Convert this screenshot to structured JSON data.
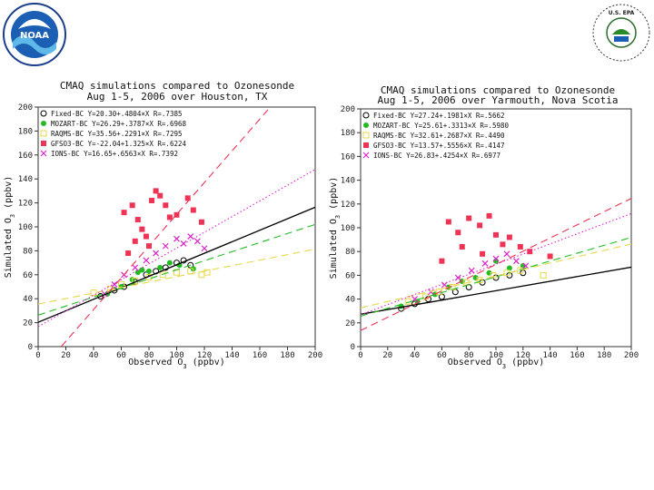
{
  "logos": {
    "noaa": {
      "text": "NOAA"
    },
    "epa": {
      "text": "U.S. EPA"
    }
  },
  "colors": {
    "fixed": "#000000",
    "mozart": "#22bb22",
    "raqms": "#e8d84a",
    "gfso3": "#ee3355",
    "ions": "#dd22cc"
  },
  "chart_data": [
    {
      "type": "scatter",
      "title": "CMAQ simulations compared to Ozonesonde",
      "subtitle": "Aug 1-5, 2006 over Houston, TX",
      "xlabel": "Observed O3 (ppbv)",
      "ylabel": "Simulated O3 (ppbv)",
      "xlim": [
        0,
        200
      ],
      "ylim": [
        0,
        200
      ],
      "xticks": [
        0,
        20,
        40,
        60,
        80,
        100,
        120,
        140,
        160,
        180,
        200
      ],
      "yticks": [
        0,
        20,
        40,
        60,
        80,
        100,
        120,
        140,
        160,
        180,
        200
      ],
      "series": [
        {
          "key": "fixed",
          "name": "Fixed-BC",
          "legend": "Fixed-BC Y=20.30+.4804×X R=.7385",
          "marker": "circle",
          "line": "solid",
          "intercept": 20.3,
          "slope": 0.4804,
          "points": [
            [
              45,
              42
            ],
            [
              55,
              47
            ],
            [
              62,
              50
            ],
            [
              70,
              54
            ],
            [
              78,
              60
            ],
            [
              85,
              63
            ],
            [
              92,
              66
            ],
            [
              100,
              70
            ],
            [
              105,
              72
            ],
            [
              110,
              68
            ]
          ]
        },
        {
          "key": "mozart",
          "name": "MOZART-BC",
          "legend": "MOZART-BC Y=26.29+.3787×X R=.6968",
          "marker": "dot",
          "line": "dashed",
          "intercept": 26.29,
          "slope": 0.3787,
          "points": [
            [
              50,
              44
            ],
            [
              60,
              50
            ],
            [
              68,
              56
            ],
            [
              72,
              62
            ],
            [
              75,
              64
            ],
            [
              80,
              63
            ],
            [
              88,
              66
            ],
            [
              95,
              70
            ],
            [
              102,
              68
            ],
            [
              112,
              65
            ]
          ]
        },
        {
          "key": "raqms",
          "name": "RAQMS-BC",
          "legend": "RAQMS-BC Y=35.56+.2291×X R=.7295",
          "marker": "square",
          "line": "dashed",
          "intercept": 35.56,
          "slope": 0.2291,
          "points": [
            [
              40,
              45
            ],
            [
              52,
              48
            ],
            [
              60,
              52
            ],
            [
              70,
              55
            ],
            [
              80,
              58
            ],
            [
              90,
              60
            ],
            [
              100,
              62
            ],
            [
              110,
              63
            ],
            [
              118,
              60
            ],
            [
              122,
              62
            ]
          ]
        },
        {
          "key": "gfso3",
          "name": "GFSO3-BC",
          "legend": "GFSO3-BC Y=-22.04+1.325×X R=.6224",
          "marker": "filled-square",
          "line": "dashed",
          "intercept": -22.04,
          "slope": 1.325,
          "points": [
            [
              62,
              112
            ],
            [
              68,
              118
            ],
            [
              72,
              106
            ],
            [
              75,
              98
            ],
            [
              78,
              92
            ],
            [
              82,
              122
            ],
            [
              85,
              130
            ],
            [
              88,
              126
            ],
            [
              92,
              118
            ],
            [
              95,
              108
            ],
            [
              100,
              110
            ],
            [
              108,
              124
            ],
            [
              112,
              114
            ],
            [
              118,
              104
            ],
            [
              70,
              88
            ],
            [
              65,
              78
            ],
            [
              80,
              84
            ]
          ]
        },
        {
          "key": "ions",
          "name": "IONS-BC",
          "legend": "IONS-BC Y=16.65+.6563×X R=.7392",
          "marker": "cross",
          "line": "dotted",
          "intercept": 16.65,
          "slope": 0.6563,
          "points": [
            [
              48,
              44
            ],
            [
              55,
              52
            ],
            [
              62,
              60
            ],
            [
              70,
              66
            ],
            [
              78,
              72
            ],
            [
              85,
              78
            ],
            [
              92,
              84
            ],
            [
              100,
              90
            ],
            [
              105,
              86
            ],
            [
              110,
              92
            ],
            [
              115,
              88
            ],
            [
              120,
              82
            ]
          ]
        }
      ]
    },
    {
      "type": "scatter",
      "title": "CMAQ simulations compared to Ozonesonde",
      "subtitle": "Aug 1-5, 2006 over Yarmouth, Nova Scotia",
      "xlabel": "Observed O3 (ppbv)",
      "ylabel": "Simulated O3 (ppbv)",
      "xlim": [
        0,
        200
      ],
      "ylim": [
        0,
        200
      ],
      "xticks": [
        0,
        20,
        40,
        60,
        80,
        100,
        120,
        140,
        160,
        180,
        200
      ],
      "yticks": [
        0,
        20,
        40,
        60,
        80,
        100,
        120,
        140,
        160,
        180,
        200
      ],
      "series": [
        {
          "key": "fixed",
          "name": "Fixed-BC",
          "legend": "Fixed-BC Y=27.24+.1981×X R=.5662",
          "marker": "circle",
          "line": "solid",
          "intercept": 27.24,
          "slope": 0.1981,
          "points": [
            [
              30,
              32
            ],
            [
              40,
              36
            ],
            [
              50,
              40
            ],
            [
              60,
              42
            ],
            [
              70,
              46
            ],
            [
              80,
              50
            ],
            [
              90,
              54
            ],
            [
              100,
              58
            ],
            [
              110,
              60
            ],
            [
              120,
              62
            ]
          ]
        },
        {
          "key": "mozart",
          "name": "MOZART-BC",
          "legend": "MOZART-BC Y=25.61+.3313×X R=.5980",
          "marker": "dot",
          "line": "dashed",
          "intercept": 25.61,
          "slope": 0.3313,
          "points": [
            [
              30,
              34
            ],
            [
              42,
              38
            ],
            [
              55,
              44
            ],
            [
              65,
              50
            ],
            [
              75,
              55
            ],
            [
              85,
              58
            ],
            [
              95,
              62
            ],
            [
              100,
              72
            ],
            [
              110,
              66
            ],
            [
              120,
              68
            ]
          ]
        },
        {
          "key": "raqms",
          "name": "RAQMS-BC",
          "legend": "RAQMS-BC Y=32.61+.2687×X R=.4490",
          "marker": "square",
          "line": "dashed",
          "intercept": 32.61,
          "slope": 0.2687,
          "points": [
            [
              35,
              38
            ],
            [
              48,
              42
            ],
            [
              58,
              46
            ],
            [
              68,
              50
            ],
            [
              78,
              54
            ],
            [
              88,
              56
            ],
            [
              98,
              60
            ],
            [
              108,
              62
            ],
            [
              118,
              64
            ],
            [
              135,
              60
            ]
          ]
        },
        {
          "key": "gfso3",
          "name": "GFSO3-BC",
          "legend": "GFSO3-BC Y=13.57+.5556×X R=.4147",
          "marker": "filled-square",
          "line": "dashed",
          "intercept": 13.57,
          "slope": 0.5556,
          "points": [
            [
              65,
              105
            ],
            [
              72,
              96
            ],
            [
              80,
              108
            ],
            [
              88,
              102
            ],
            [
              95,
              110
            ],
            [
              100,
              94
            ],
            [
              105,
              86
            ],
            [
              110,
              92
            ],
            [
              118,
              84
            ],
            [
              125,
              80
            ],
            [
              140,
              76
            ],
            [
              90,
              78
            ],
            [
              75,
              84
            ],
            [
              60,
              72
            ]
          ]
        },
        {
          "key": "ions",
          "name": "IONS-BC",
          "legend": "IONS-BC Y=26.83+.4254×X R=.6977",
          "marker": "cross",
          "line": "dotted",
          "intercept": 26.83,
          "slope": 0.4254,
          "points": [
            [
              40,
              40
            ],
            [
              52,
              46
            ],
            [
              62,
              52
            ],
            [
              72,
              58
            ],
            [
              82,
              64
            ],
            [
              92,
              70
            ],
            [
              100,
              74
            ],
            [
              108,
              78
            ],
            [
              115,
              72
            ],
            [
              122,
              68
            ]
          ]
        }
      ]
    }
  ]
}
